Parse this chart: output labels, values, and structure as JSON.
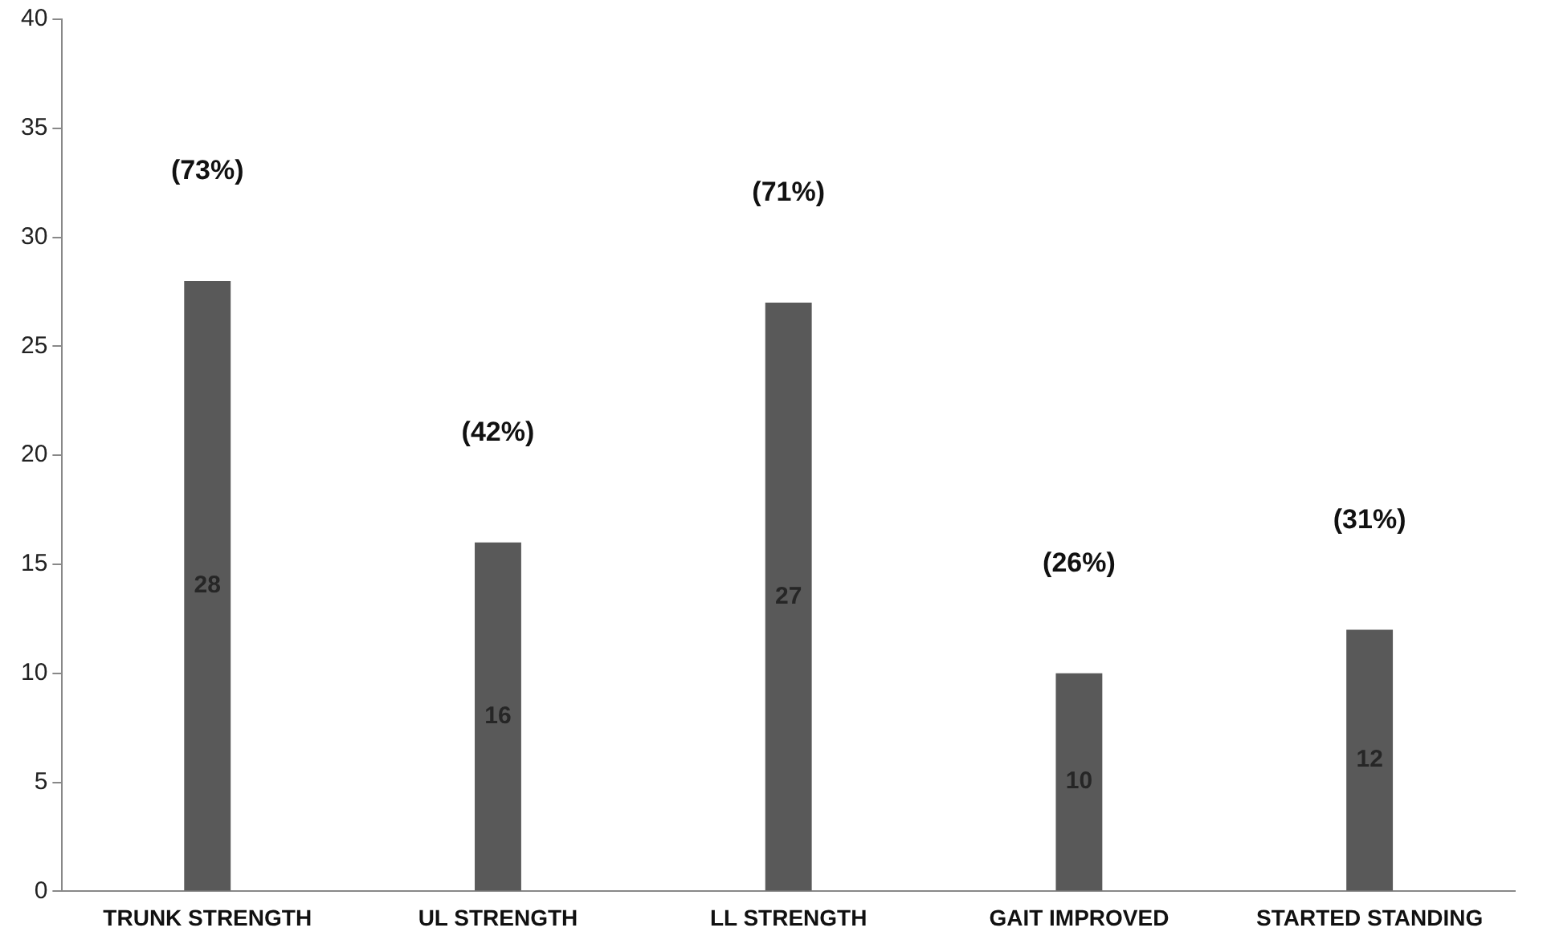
{
  "chart_data": {
    "type": "bar",
    "categories": [
      "TRUNK STRENGTH",
      "UL STRENGTH",
      "LL STRENGTH",
      "GAIT IMPROVED",
      "STARTED STANDING"
    ],
    "values": [
      28,
      16,
      27,
      10,
      12
    ],
    "color": "#595959",
    "data_labels": true,
    "ylim": [
      0,
      40
    ],
    "yticks": [
      0,
      5,
      10,
      15,
      20,
      25,
      30,
      35,
      40
    ],
    "grid": false,
    "legend": false,
    "annotations": [
      "(73%)",
      "(42%)",
      "(71%)",
      "(26%)",
      "(31%)"
    ]
  }
}
